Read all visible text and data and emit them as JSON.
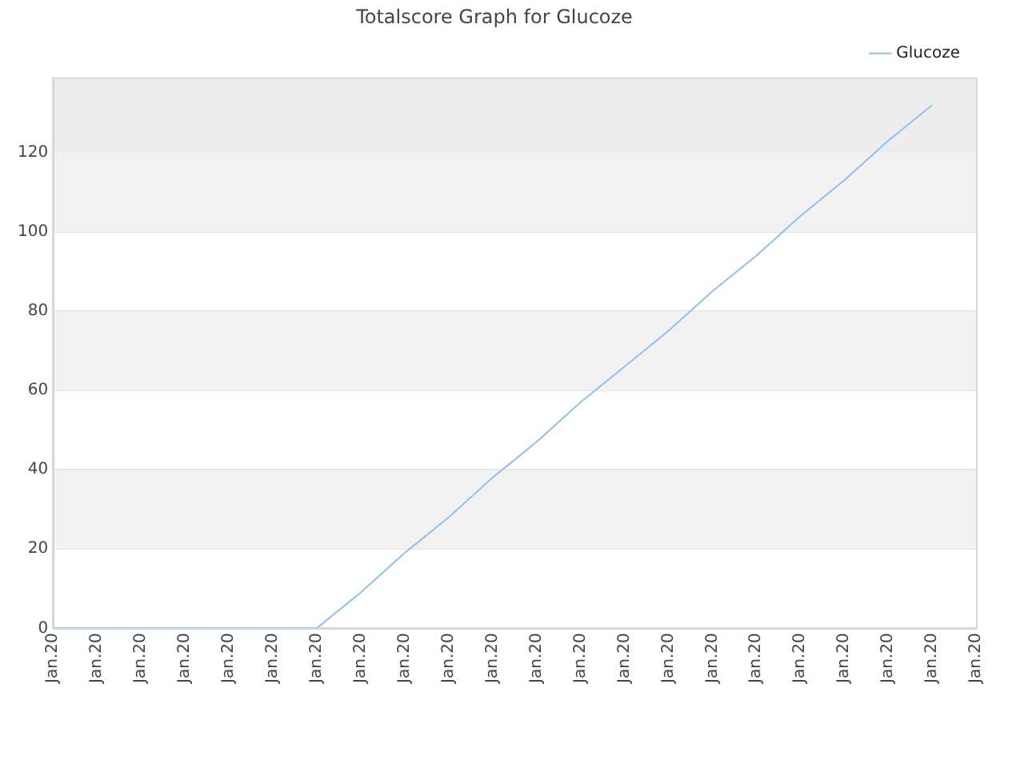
{
  "chart_data": {
    "type": "line",
    "title": "Totalscore Graph for Glucoze",
    "categories": [
      "Jan.20",
      "Jan.20",
      "Jan.20",
      "Jan.20",
      "Jan.20",
      "Jan.20",
      "Jan.20",
      "Jan.20",
      "Jan.20",
      "Jan.20",
      "Jan.20",
      "Jan.20",
      "Jan.20",
      "Jan.20",
      "Jan.20",
      "Jan.20",
      "Jan.20",
      "Jan.20",
      "Jan.20",
      "Jan.20",
      "Jan.20",
      "Jan.20"
    ],
    "series": [
      {
        "name": "Glucoze",
        "color": "#90bff0",
        "values": [
          0,
          0,
          0,
          0,
          0,
          0,
          0,
          9,
          19,
          28,
          38,
          47,
          57,
          66,
          75,
          85,
          94,
          104,
          113,
          123,
          132,
          null
        ]
      }
    ],
    "ylim": [
      0,
      139
    ],
    "yticks": [
      0,
      20,
      40,
      60,
      80,
      100,
      120
    ],
    "bands": [
      {
        "axis": "y",
        "from": 20,
        "to": 40,
        "color": "#f2f2f2"
      },
      {
        "axis": "y",
        "from": 60,
        "to": 80,
        "color": "#f2f2f2"
      },
      {
        "axis": "y",
        "from": 100,
        "to": 120,
        "color": "#f2f2f2"
      },
      {
        "axis": "y",
        "from": 120,
        "to": 139,
        "color": "#ededed"
      }
    ],
    "grid": "y",
    "legend": "top right",
    "marker": "none",
    "line_style": "solid"
  }
}
